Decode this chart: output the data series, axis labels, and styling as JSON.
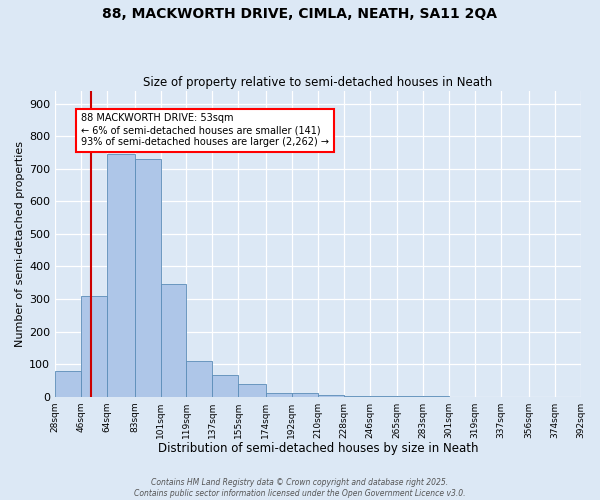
{
  "title_line1": "88, MACKWORTH DRIVE, CIMLA, NEATH, SA11 2QA",
  "title_line2": "Size of property relative to semi-detached houses in Neath",
  "xlabel": "Distribution of semi-detached houses by size in Neath",
  "ylabel": "Number of semi-detached properties",
  "bar_left_edges": [
    28,
    46,
    64,
    83,
    101,
    119,
    137,
    155,
    174,
    192,
    210,
    228,
    246,
    265,
    283,
    301,
    319,
    337,
    356,
    374
  ],
  "bar_widths": [
    18,
    18,
    19,
    18,
    18,
    18,
    18,
    19,
    18,
    18,
    18,
    18,
    19,
    18,
    18,
    18,
    18,
    19,
    18,
    18
  ],
  "bar_heights": [
    80,
    310,
    745,
    730,
    345,
    110,
    65,
    40,
    12,
    10,
    5,
    3,
    2,
    1,
    1,
    0,
    0,
    0,
    0,
    0
  ],
  "bar_color": "#aec6e8",
  "bar_edgecolor": "#5b8db8",
  "tick_labels": [
    "28sqm",
    "46sqm",
    "64sqm",
    "83sqm",
    "101sqm",
    "119sqm",
    "137sqm",
    "155sqm",
    "174sqm",
    "192sqm",
    "210sqm",
    "228sqm",
    "246sqm",
    "265sqm",
    "283sqm",
    "301sqm",
    "319sqm",
    "337sqm",
    "356sqm",
    "374sqm",
    "392sqm"
  ],
  "vline_x": 53,
  "vline_color": "#cc0000",
  "annotation_text": "88 MACKWORTH DRIVE: 53sqm\n← 6% of semi-detached houses are smaller (141)\n93% of semi-detached houses are larger (2,262) →",
  "ylim": [
    0,
    940
  ],
  "xlim": [
    28,
    392
  ],
  "yticks": [
    0,
    100,
    200,
    300,
    400,
    500,
    600,
    700,
    800,
    900
  ],
  "background_color": "#dce8f5",
  "grid_color": "#ffffff",
  "footer1": "Contains HM Land Registry data © Crown copyright and database right 2025.",
  "footer2": "Contains public sector information licensed under the Open Government Licence v3.0."
}
